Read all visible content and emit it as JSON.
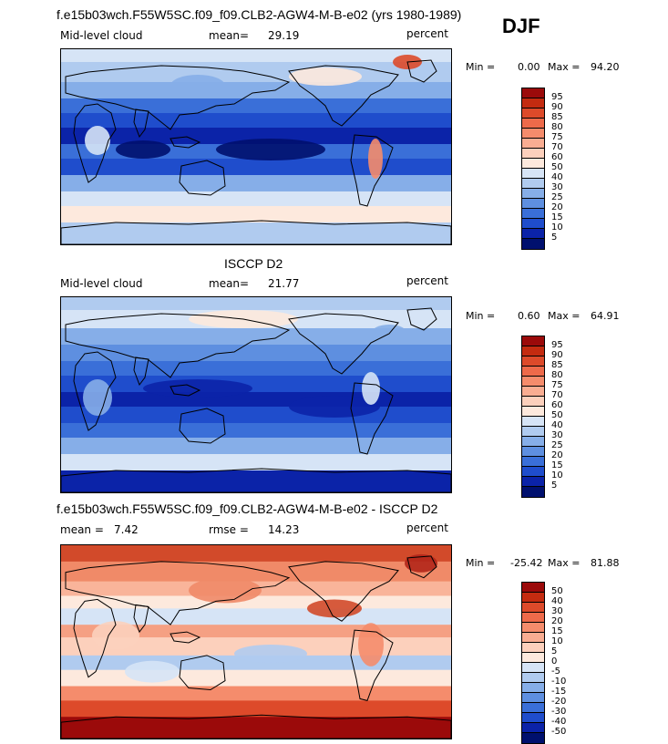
{
  "season": "DJF",
  "panels": [
    {
      "title": "f.e15b03wch.F55W5SC.f09_f09.CLB2-AGW4-M-B-e02 (yrs 1980-1989)",
      "left_label": "Mid-level cloud",
      "stat_label": "mean=",
      "stat_value": "29.19",
      "units": "percent",
      "min_label": "Min =",
      "min_value": "0.00",
      "max_label": "Max =",
      "max_value": "94.20",
      "colorbar": {
        "labels": [
          "95",
          "90",
          "85",
          "80",
          "75",
          "70",
          "60",
          "50",
          "40",
          "30",
          "25",
          "20",
          "15",
          "10",
          "5"
        ],
        "colors": [
          "#9b0a0a",
          "#c42b10",
          "#dd4a2a",
          "#ee6a4a",
          "#f58c6c",
          "#f9ad92",
          "#fcd0bc",
          "#fde9dd",
          "#d6e4f6",
          "#b0cbef",
          "#86aee8",
          "#5e8fe0",
          "#3a6fd8",
          "#1f4dcc",
          "#0b23a8",
          "#00106e"
        ]
      },
      "mean_field": 29.19
    },
    {
      "title": "ISCCP D2",
      "left_label": "Mid-level cloud",
      "stat_label": "mean=",
      "stat_value": "21.77",
      "units": "percent",
      "min_label": "Min =",
      "min_value": "0.60",
      "max_label": "Max =",
      "max_value": "64.91",
      "colorbar": {
        "labels": [
          "95",
          "90",
          "85",
          "80",
          "75",
          "70",
          "60",
          "50",
          "40",
          "30",
          "25",
          "20",
          "15",
          "10",
          "5"
        ],
        "colors": [
          "#9b0a0a",
          "#c42b10",
          "#dd4a2a",
          "#ee6a4a",
          "#f58c6c",
          "#f9ad92",
          "#fcd0bc",
          "#fde9dd",
          "#d6e4f6",
          "#b0cbef",
          "#86aee8",
          "#5e8fe0",
          "#3a6fd8",
          "#1f4dcc",
          "#0b23a8",
          "#00106e"
        ]
      },
      "mean_field": 21.77
    },
    {
      "title": "f.e15b03wch.F55W5SC.f09_f09.CLB2-AGW4-M-B-e02 - ISCCP D2",
      "left_label": "mean =",
      "left_value": "7.42",
      "stat_label": "rmse =",
      "stat_value": "14.23",
      "units": "percent",
      "min_label": "Min =",
      "min_value": "-25.42",
      "max_label": "Max =",
      "max_value": "81.88",
      "colorbar": {
        "labels": [
          "50",
          "40",
          "30",
          "20",
          "15",
          "10",
          "5",
          "0",
          "-5",
          "-10",
          "-15",
          "-20",
          "-30",
          "-40",
          "-50"
        ],
        "colors": [
          "#9b0a0a",
          "#c42b10",
          "#dd4a2a",
          "#ee6a4a",
          "#f58c6c",
          "#f9ad92",
          "#fcd0bc",
          "#fde9dd",
          "#d6e4f6",
          "#b0cbef",
          "#86aee8",
          "#5e8fe0",
          "#3a6fd8",
          "#1f4dcc",
          "#0b23a8",
          "#00106e"
        ]
      },
      "mean_field": 7.42
    }
  ]
}
